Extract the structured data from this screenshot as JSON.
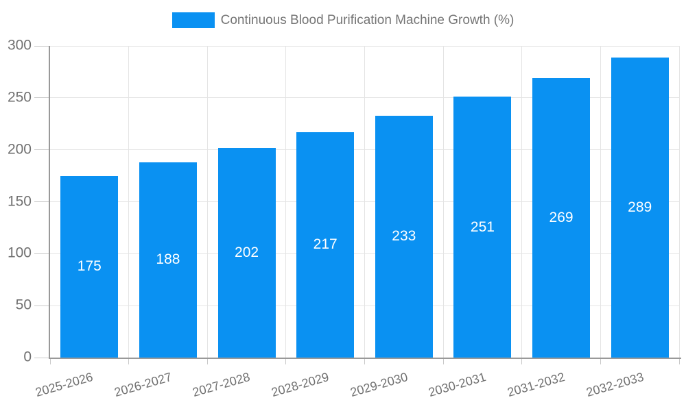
{
  "legend": {
    "label": "Continuous Blood Purification Machine Growth (%)"
  },
  "colors": {
    "bar": "#0A91F2",
    "grid": "#E4E4E4",
    "axis": "#999999",
    "tick": "#C9C9C9",
    "axis_text": "#707070",
    "legend_text": "#757575",
    "value_text": "#FFFFFF",
    "background": "#FFFFFF"
  },
  "chart_data": {
    "type": "bar",
    "title": "Continuous Blood Purification Machine Growth (%)",
    "categories": [
      "2025-2026",
      "2026-2027",
      "2027-2028",
      "2028-2029",
      "2029-2030",
      "2030-2031",
      "2031-2032",
      "2032-2033"
    ],
    "values": [
      175,
      188,
      202,
      217,
      233,
      251,
      269,
      289
    ],
    "series_name": "Continuous Blood Purification Machine Growth (%)",
    "xlabel": "",
    "ylabel": "",
    "ylim": [
      0,
      300
    ],
    "yticks": [
      0,
      50,
      100,
      150,
      200,
      250,
      300
    ],
    "grid": true,
    "legend_position": "top-center",
    "bar_labels": "inside-center",
    "x_label_rotation_deg": -16
  }
}
